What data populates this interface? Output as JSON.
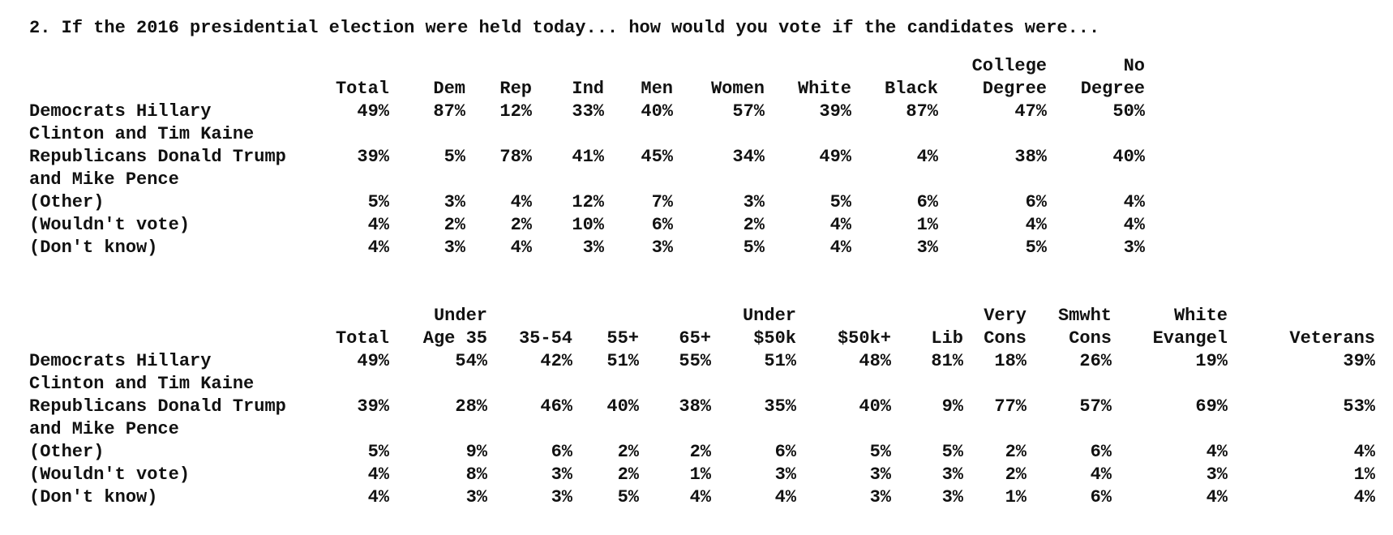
{
  "question": "2. If the 2016 presidential election were held today... how would you vote if the candidates were...",
  "tables": [
    {
      "headers_top": [
        "",
        "",
        "",
        "",
        "",
        "",
        "",
        "",
        "College",
        "No"
      ],
      "headers_bottom": [
        "Total",
        "Dem",
        "Rep",
        "Ind",
        "Men",
        "Women",
        "White",
        "Black",
        "Degree",
        "Degree"
      ],
      "rows": [
        {
          "label": "Democrats Hillary",
          "values": [
            "49%",
            "87%",
            "12%",
            "33%",
            "40%",
            "57%",
            "39%",
            "87%",
            "47%",
            "50%"
          ]
        },
        {
          "label": "Clinton and Tim Kaine",
          "values": []
        },
        {
          "label": "Republicans Donald Trump",
          "values": [
            "39%",
            "5%",
            "78%",
            "41%",
            "45%",
            "34%",
            "49%",
            "4%",
            "38%",
            "40%"
          ]
        },
        {
          "label": "and Mike Pence",
          "values": []
        },
        {
          "label": "(Other)",
          "values": [
            "5%",
            "3%",
            "4%",
            "12%",
            "7%",
            "3%",
            "5%",
            "6%",
            "6%",
            "4%"
          ]
        },
        {
          "label": "(Wouldn't vote)",
          "values": [
            "4%",
            "2%",
            "2%",
            "10%",
            "6%",
            "2%",
            "4%",
            "1%",
            "4%",
            "4%"
          ]
        },
        {
          "label": "(Don't know)",
          "values": [
            "4%",
            "3%",
            "4%",
            "3%",
            "3%",
            "5%",
            "4%",
            "3%",
            "5%",
            "3%"
          ]
        }
      ]
    },
    {
      "headers_top": [
        "",
        "Under",
        "",
        "",
        "",
        "Under",
        "",
        "",
        "Very",
        "Smwht",
        "White",
        ""
      ],
      "headers_bottom": [
        "Total",
        "Age 35",
        "35-54",
        "55+",
        "65+",
        "$50k",
        "$50k+",
        "Lib",
        "Cons",
        "Cons",
        "Evangel",
        "Veterans"
      ],
      "rows": [
        {
          "label": "Democrats Hillary",
          "values": [
            "49%",
            "54%",
            "42%",
            "51%",
            "55%",
            "51%",
            "48%",
            "81%",
            "18%",
            "26%",
            "19%",
            "39%"
          ]
        },
        {
          "label": "Clinton and Tim Kaine",
          "values": []
        },
        {
          "label": "Republicans Donald Trump",
          "values": [
            "39%",
            "28%",
            "46%",
            "40%",
            "38%",
            "35%",
            "40%",
            "9%",
            "77%",
            "57%",
            "69%",
            "53%"
          ]
        },
        {
          "label": "and Mike Pence",
          "values": []
        },
        {
          "label": "(Other)",
          "values": [
            "5%",
            "9%",
            "6%",
            "2%",
            "2%",
            "6%",
            "5%",
            "5%",
            "2%",
            "6%",
            "4%",
            "4%"
          ]
        },
        {
          "label": "(Wouldn't vote)",
          "values": [
            "4%",
            "8%",
            "3%",
            "2%",
            "1%",
            "3%",
            "3%",
            "3%",
            "2%",
            "4%",
            "3%",
            "1%"
          ]
        },
        {
          "label": "(Don't know)",
          "values": [
            "4%",
            "3%",
            "3%",
            "5%",
            "4%",
            "4%",
            "3%",
            "3%",
            "1%",
            "6%",
            "4%",
            "4%"
          ]
        }
      ]
    }
  ]
}
